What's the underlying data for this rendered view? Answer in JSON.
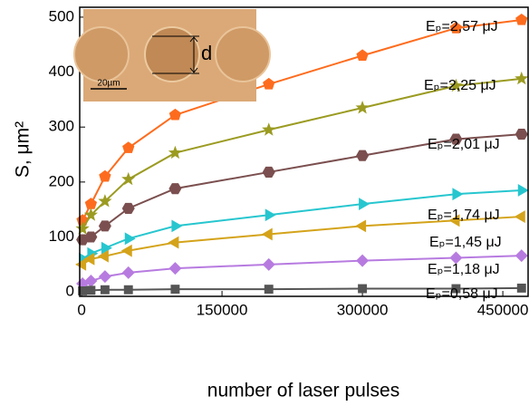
{
  "chart_data": {
    "type": "line",
    "xlabel": "number of laser pulses",
    "ylabel": "S, μm²",
    "xlim": [
      -2000,
      477000
    ],
    "ylim": [
      -8,
      518
    ],
    "xticks": [
      0,
      150000,
      300000,
      450000
    ],
    "yticks": [
      0,
      100,
      200,
      300,
      400,
      500
    ],
    "x": [
      1000,
      10000,
      25000,
      50000,
      100000,
      200000,
      300000,
      400000,
      470000
    ],
    "series": [
      {
        "name": "Eₚ=2,57 μJ",
        "color": "#fd6c1e",
        "marker": "pentagon",
        "values": [
          130,
          160,
          210,
          262,
          322,
          378,
          430,
          480,
          495
        ]
      },
      {
        "name": "Eₚ=2,25 μJ",
        "color": "#9b9b22",
        "marker": "star",
        "values": [
          115,
          140,
          165,
          205,
          253,
          295,
          335,
          375,
          388
        ]
      },
      {
        "name": "Eₚ=2,01 μJ",
        "color": "#7b4f4f",
        "marker": "hexagon",
        "values": [
          95,
          100,
          120,
          152,
          188,
          218,
          248,
          278,
          287
        ]
      },
      {
        "name": "Eₚ=1,74 μJ",
        "color": "#27c6cf",
        "marker": "triangle-right",
        "values": [
          60,
          70,
          80,
          97,
          120,
          140,
          160,
          178,
          185
        ]
      },
      {
        "name": "Eₚ=1,45 μJ",
        "color": "#d4a31a",
        "marker": "triangle-left",
        "values": [
          50,
          60,
          65,
          75,
          90,
          105,
          120,
          130,
          137
        ]
      },
      {
        "name": "Eₚ=1,18 μJ",
        "color": "#b77be0",
        "marker": "diamond",
        "values": [
          15,
          20,
          28,
          35,
          43,
          50,
          57,
          62,
          66
        ]
      },
      {
        "name": "Eₚ=0,58 μJ",
        "color": "#555555",
        "marker": "square",
        "values": [
          2,
          3,
          4,
          4,
          5,
          5,
          6,
          6,
          7
        ]
      }
    ]
  },
  "inset": {
    "label": "d",
    "scale_bar": "20µm"
  }
}
